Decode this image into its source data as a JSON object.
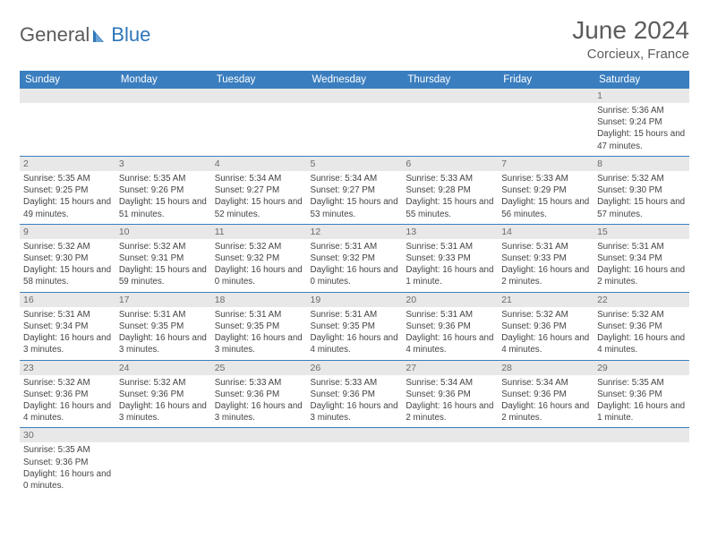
{
  "logo": {
    "word1": "General",
    "word2": "Blue"
  },
  "title": "June 2024",
  "location": "Corcieux, France",
  "colors": {
    "header_bg": "#3a7ebf",
    "header_text": "#ffffff",
    "daynum_bg": "#e8e8e8",
    "daynum_text": "#6b6b6b",
    "cell_border": "#3a7ebf",
    "logo_gray": "#5b5b5b",
    "logo_blue": "#2f76b9"
  },
  "weekdays": [
    "Sunday",
    "Monday",
    "Tuesday",
    "Wednesday",
    "Thursday",
    "Friday",
    "Saturday"
  ],
  "weeks": [
    [
      {
        "n": "",
        "sunrise": "",
        "sunset": "",
        "daylight": ""
      },
      {
        "n": "",
        "sunrise": "",
        "sunset": "",
        "daylight": ""
      },
      {
        "n": "",
        "sunrise": "",
        "sunset": "",
        "daylight": ""
      },
      {
        "n": "",
        "sunrise": "",
        "sunset": "",
        "daylight": ""
      },
      {
        "n": "",
        "sunrise": "",
        "sunset": "",
        "daylight": ""
      },
      {
        "n": "",
        "sunrise": "",
        "sunset": "",
        "daylight": ""
      },
      {
        "n": "1",
        "sunrise": "Sunrise: 5:36 AM",
        "sunset": "Sunset: 9:24 PM",
        "daylight": "Daylight: 15 hours and 47 minutes."
      }
    ],
    [
      {
        "n": "2",
        "sunrise": "Sunrise: 5:35 AM",
        "sunset": "Sunset: 9:25 PM",
        "daylight": "Daylight: 15 hours and 49 minutes."
      },
      {
        "n": "3",
        "sunrise": "Sunrise: 5:35 AM",
        "sunset": "Sunset: 9:26 PM",
        "daylight": "Daylight: 15 hours and 51 minutes."
      },
      {
        "n": "4",
        "sunrise": "Sunrise: 5:34 AM",
        "sunset": "Sunset: 9:27 PM",
        "daylight": "Daylight: 15 hours and 52 minutes."
      },
      {
        "n": "5",
        "sunrise": "Sunrise: 5:34 AM",
        "sunset": "Sunset: 9:27 PM",
        "daylight": "Daylight: 15 hours and 53 minutes."
      },
      {
        "n": "6",
        "sunrise": "Sunrise: 5:33 AM",
        "sunset": "Sunset: 9:28 PM",
        "daylight": "Daylight: 15 hours and 55 minutes."
      },
      {
        "n": "7",
        "sunrise": "Sunrise: 5:33 AM",
        "sunset": "Sunset: 9:29 PM",
        "daylight": "Daylight: 15 hours and 56 minutes."
      },
      {
        "n": "8",
        "sunrise": "Sunrise: 5:32 AM",
        "sunset": "Sunset: 9:30 PM",
        "daylight": "Daylight: 15 hours and 57 minutes."
      }
    ],
    [
      {
        "n": "9",
        "sunrise": "Sunrise: 5:32 AM",
        "sunset": "Sunset: 9:30 PM",
        "daylight": "Daylight: 15 hours and 58 minutes."
      },
      {
        "n": "10",
        "sunrise": "Sunrise: 5:32 AM",
        "sunset": "Sunset: 9:31 PM",
        "daylight": "Daylight: 15 hours and 59 minutes."
      },
      {
        "n": "11",
        "sunrise": "Sunrise: 5:32 AM",
        "sunset": "Sunset: 9:32 PM",
        "daylight": "Daylight: 16 hours and 0 minutes."
      },
      {
        "n": "12",
        "sunrise": "Sunrise: 5:31 AM",
        "sunset": "Sunset: 9:32 PM",
        "daylight": "Daylight: 16 hours and 0 minutes."
      },
      {
        "n": "13",
        "sunrise": "Sunrise: 5:31 AM",
        "sunset": "Sunset: 9:33 PM",
        "daylight": "Daylight: 16 hours and 1 minute."
      },
      {
        "n": "14",
        "sunrise": "Sunrise: 5:31 AM",
        "sunset": "Sunset: 9:33 PM",
        "daylight": "Daylight: 16 hours and 2 minutes."
      },
      {
        "n": "15",
        "sunrise": "Sunrise: 5:31 AM",
        "sunset": "Sunset: 9:34 PM",
        "daylight": "Daylight: 16 hours and 2 minutes."
      }
    ],
    [
      {
        "n": "16",
        "sunrise": "Sunrise: 5:31 AM",
        "sunset": "Sunset: 9:34 PM",
        "daylight": "Daylight: 16 hours and 3 minutes."
      },
      {
        "n": "17",
        "sunrise": "Sunrise: 5:31 AM",
        "sunset": "Sunset: 9:35 PM",
        "daylight": "Daylight: 16 hours and 3 minutes."
      },
      {
        "n": "18",
        "sunrise": "Sunrise: 5:31 AM",
        "sunset": "Sunset: 9:35 PM",
        "daylight": "Daylight: 16 hours and 3 minutes."
      },
      {
        "n": "19",
        "sunrise": "Sunrise: 5:31 AM",
        "sunset": "Sunset: 9:35 PM",
        "daylight": "Daylight: 16 hours and 4 minutes."
      },
      {
        "n": "20",
        "sunrise": "Sunrise: 5:31 AM",
        "sunset": "Sunset: 9:36 PM",
        "daylight": "Daylight: 16 hours and 4 minutes."
      },
      {
        "n": "21",
        "sunrise": "Sunrise: 5:32 AM",
        "sunset": "Sunset: 9:36 PM",
        "daylight": "Daylight: 16 hours and 4 minutes."
      },
      {
        "n": "22",
        "sunrise": "Sunrise: 5:32 AM",
        "sunset": "Sunset: 9:36 PM",
        "daylight": "Daylight: 16 hours and 4 minutes."
      }
    ],
    [
      {
        "n": "23",
        "sunrise": "Sunrise: 5:32 AM",
        "sunset": "Sunset: 9:36 PM",
        "daylight": "Daylight: 16 hours and 4 minutes."
      },
      {
        "n": "24",
        "sunrise": "Sunrise: 5:32 AM",
        "sunset": "Sunset: 9:36 PM",
        "daylight": "Daylight: 16 hours and 3 minutes."
      },
      {
        "n": "25",
        "sunrise": "Sunrise: 5:33 AM",
        "sunset": "Sunset: 9:36 PM",
        "daylight": "Daylight: 16 hours and 3 minutes."
      },
      {
        "n": "26",
        "sunrise": "Sunrise: 5:33 AM",
        "sunset": "Sunset: 9:36 PM",
        "daylight": "Daylight: 16 hours and 3 minutes."
      },
      {
        "n": "27",
        "sunrise": "Sunrise: 5:34 AM",
        "sunset": "Sunset: 9:36 PM",
        "daylight": "Daylight: 16 hours and 2 minutes."
      },
      {
        "n": "28",
        "sunrise": "Sunrise: 5:34 AM",
        "sunset": "Sunset: 9:36 PM",
        "daylight": "Daylight: 16 hours and 2 minutes."
      },
      {
        "n": "29",
        "sunrise": "Sunrise: 5:35 AM",
        "sunset": "Sunset: 9:36 PM",
        "daylight": "Daylight: 16 hours and 1 minute."
      }
    ],
    [
      {
        "n": "30",
        "sunrise": "Sunrise: 5:35 AM",
        "sunset": "Sunset: 9:36 PM",
        "daylight": "Daylight: 16 hours and 0 minutes."
      },
      {
        "n": "",
        "sunrise": "",
        "sunset": "",
        "daylight": ""
      },
      {
        "n": "",
        "sunrise": "",
        "sunset": "",
        "daylight": ""
      },
      {
        "n": "",
        "sunrise": "",
        "sunset": "",
        "daylight": ""
      },
      {
        "n": "",
        "sunrise": "",
        "sunset": "",
        "daylight": ""
      },
      {
        "n": "",
        "sunrise": "",
        "sunset": "",
        "daylight": ""
      },
      {
        "n": "",
        "sunrise": "",
        "sunset": "",
        "daylight": ""
      }
    ]
  ]
}
